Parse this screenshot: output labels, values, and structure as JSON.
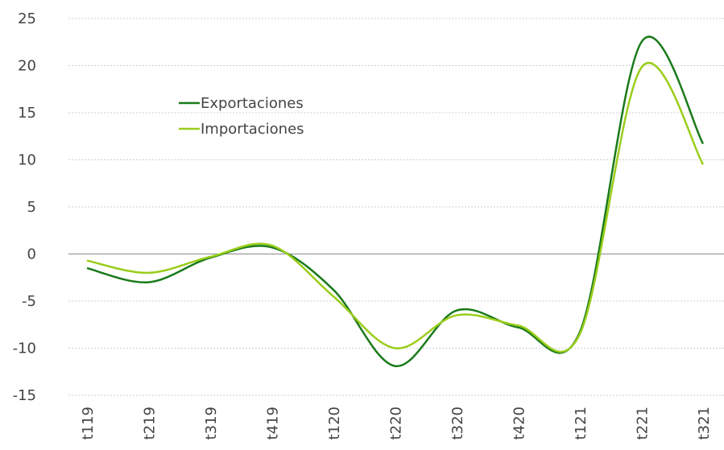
{
  "chart_data": {
    "type": "line",
    "categories": [
      "t119",
      "t219",
      "t319",
      "t419",
      "t120",
      "t220",
      "t320",
      "t420",
      "t121",
      "t221",
      "t321"
    ],
    "series": [
      {
        "name": "Exportaciones",
        "color": "#1a7a1a",
        "values": [
          -1.5,
          -3.0,
          -0.4,
          0.7,
          -3.8,
          -11.9,
          -6.0,
          -7.8,
          -8.3,
          22.5,
          11.7
        ]
      },
      {
        "name": "Importaciones",
        "color": "#9acd1a",
        "values": [
          -0.7,
          -2.0,
          -0.3,
          0.9,
          -4.5,
          -10.0,
          -6.5,
          -7.6,
          -8.5,
          19.8,
          9.5
        ]
      }
    ],
    "ylim": [
      -15,
      25
    ],
    "yticks": [
      -15,
      -10,
      -5,
      0,
      5,
      10,
      15,
      20,
      25
    ],
    "grid": true,
    "legend": "upper left",
    "smooth": true
  }
}
